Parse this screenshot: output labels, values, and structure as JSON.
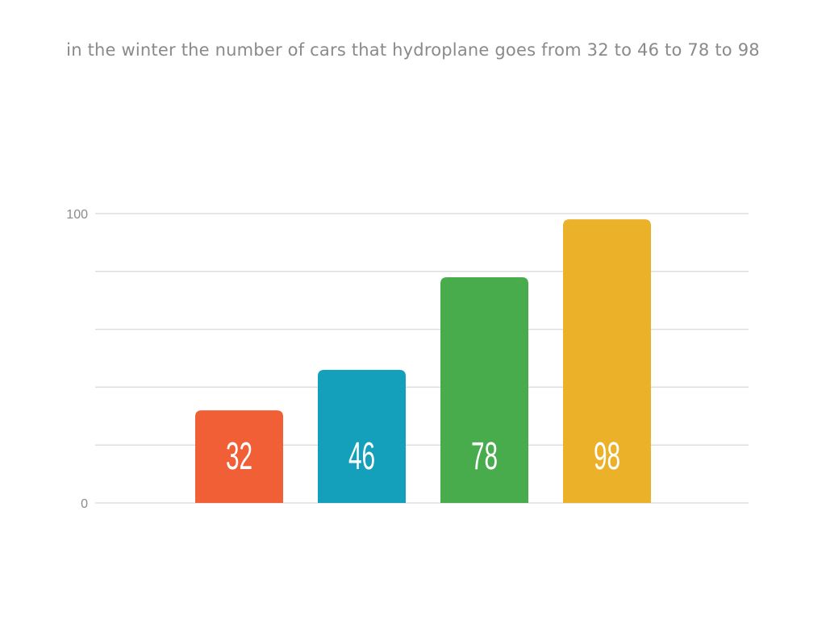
{
  "chart_data": {
    "type": "bar",
    "title": "in the winter the number of cars that hydroplane goes from 32 to 46 to 78 to 98",
    "categories": [
      "",
      "",
      "",
      ""
    ],
    "values": [
      32,
      46,
      78,
      98
    ],
    "data_labels": [
      "32",
      "46",
      "78",
      "98"
    ],
    "colors": [
      "#f05f35",
      "#149fbb",
      "#48ab4c",
      "#ebb129"
    ],
    "ylim": [
      0,
      100
    ],
    "yticks": [
      "0",
      "100"
    ],
    "grid": true,
    "legend": "none"
  }
}
